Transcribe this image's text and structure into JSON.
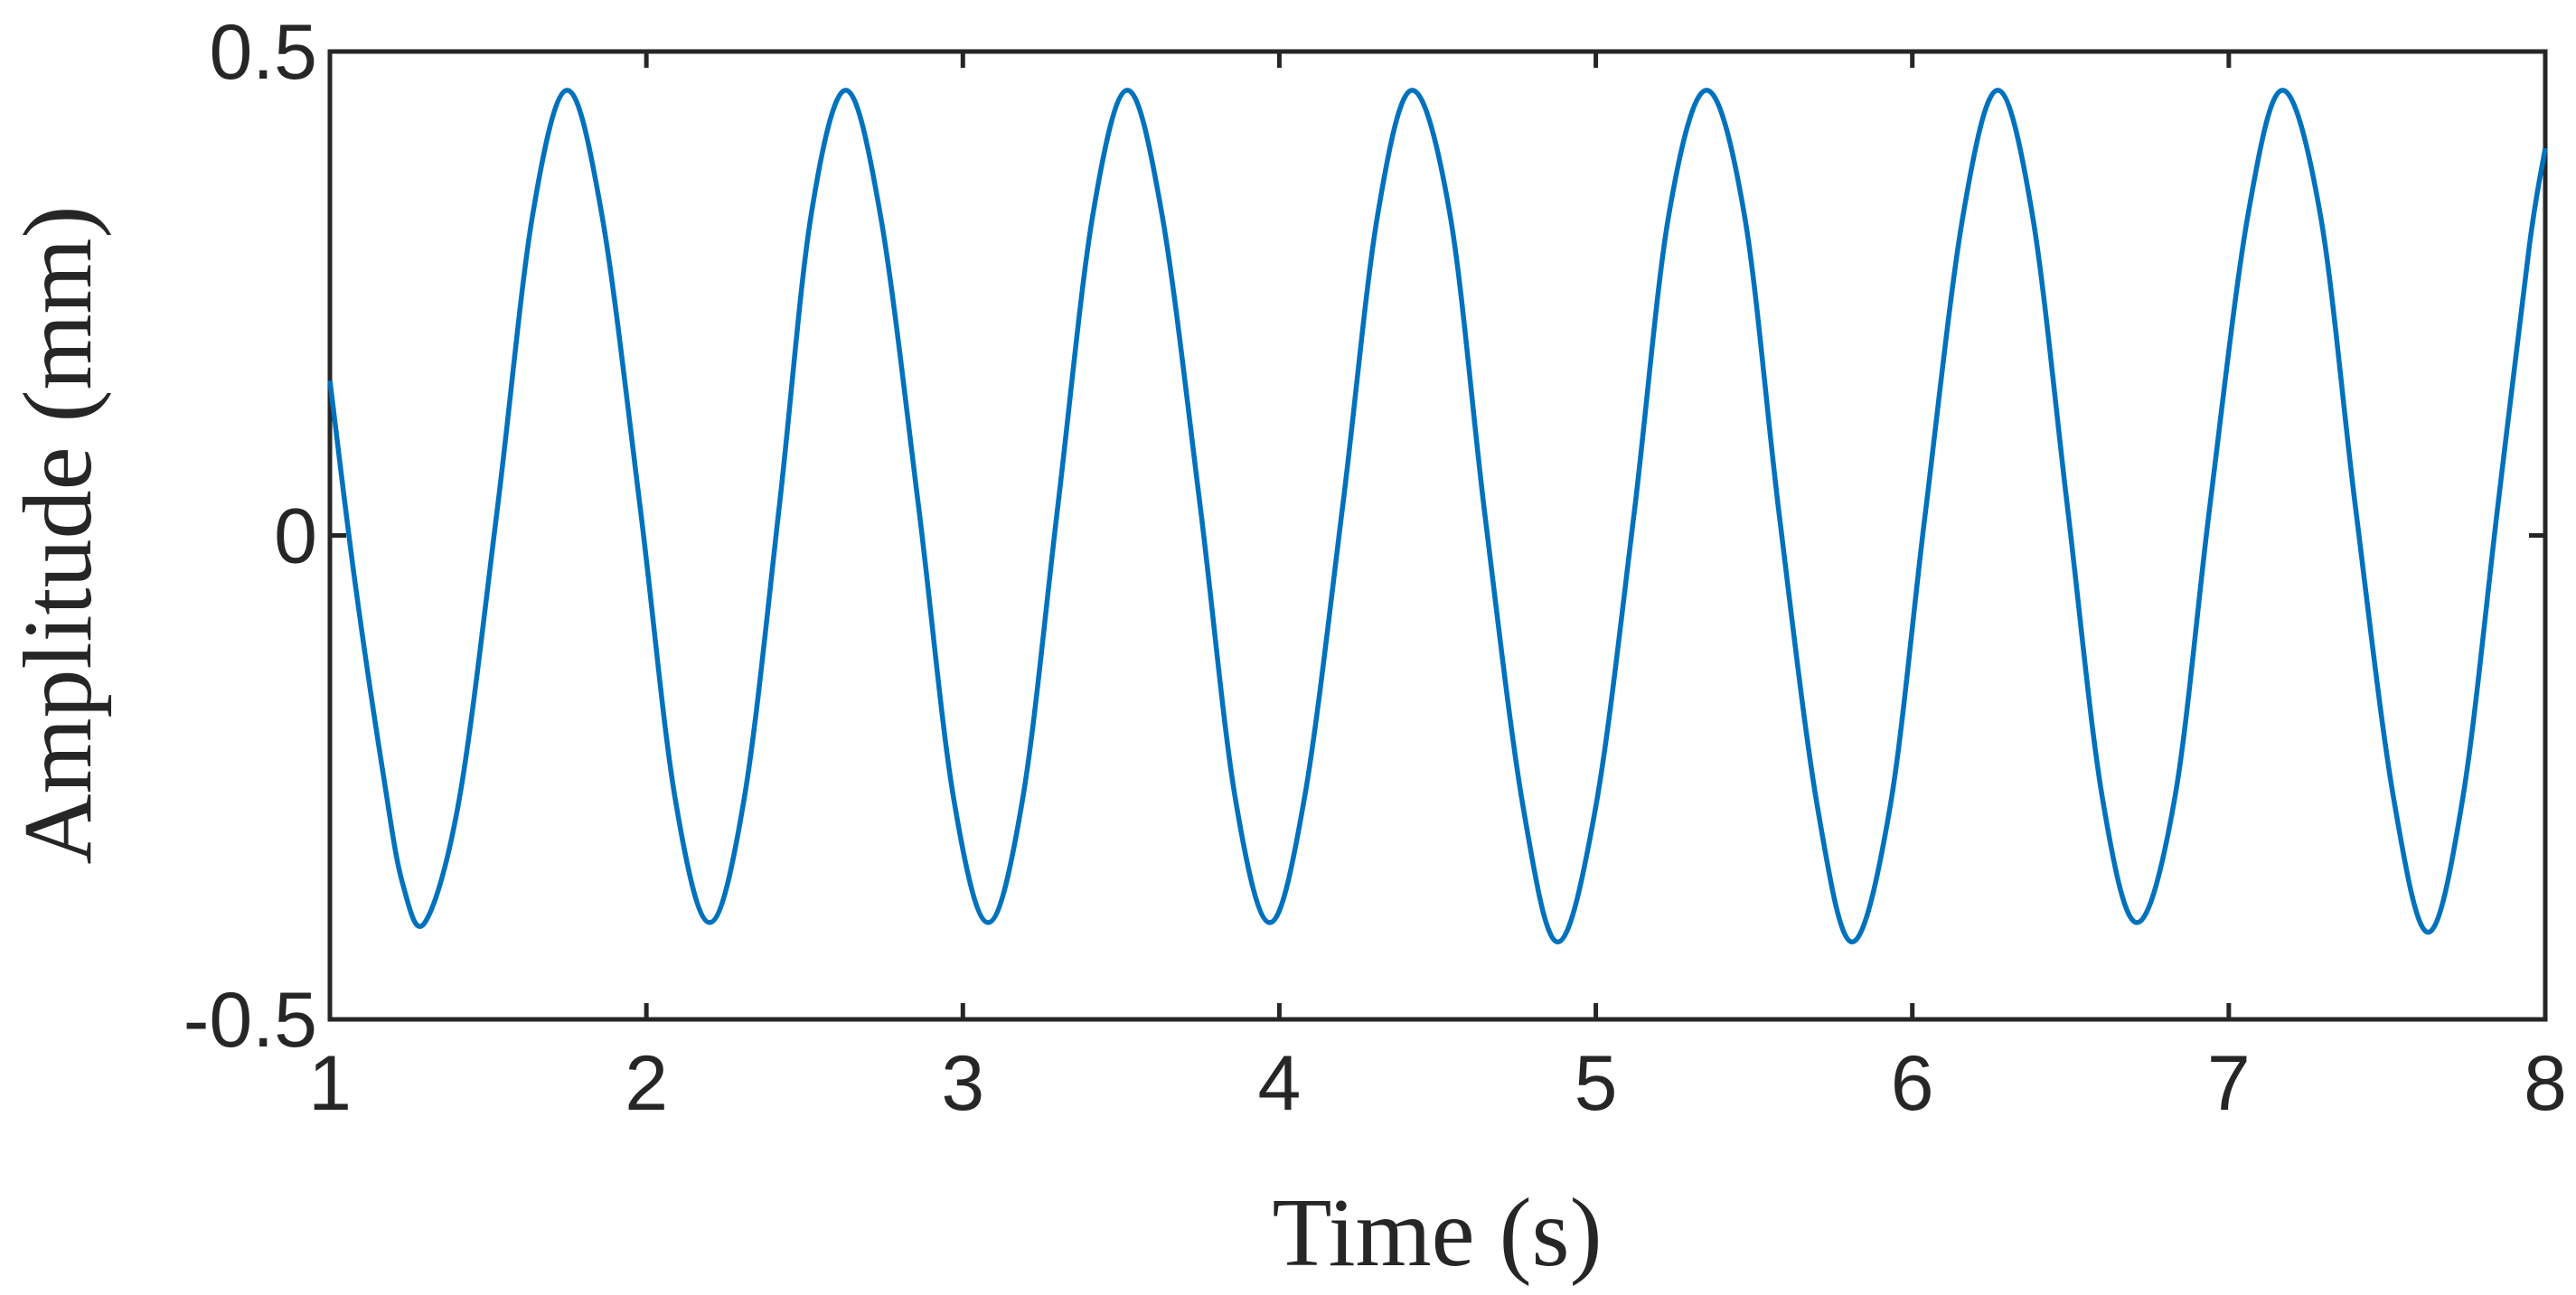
{
  "chart_data": {
    "type": "line",
    "x_label": "Time (s)",
    "y_label": "Amplitude (mm)",
    "xlim": [
      1,
      8
    ],
    "ylim": [
      -0.5,
      0.5
    ],
    "xticks": [
      1,
      2,
      3,
      4,
      5,
      6,
      7,
      8
    ],
    "yticks": [
      -0.5,
      0,
      0.5
    ],
    "grid": false,
    "series": [
      {
        "color": "#0072bd",
        "x": [
          1.0,
          1.08,
          1.17,
          1.23,
          1.3,
          1.41,
          1.53,
          1.64,
          1.75,
          1.86,
          1.98,
          2.09,
          2.2,
          2.31,
          2.42,
          2.52,
          2.63,
          2.74,
          2.86,
          2.97,
          3.08,
          3.19,
          3.3,
          3.41,
          3.52,
          3.63,
          3.75,
          3.86,
          3.97,
          4.08,
          4.2,
          4.31,
          4.42,
          4.54,
          4.65,
          4.77,
          4.88,
          5.0,
          5.12,
          5.23,
          5.35,
          5.47,
          5.58,
          5.7,
          5.81,
          5.93,
          6.04,
          6.16,
          6.27,
          6.38,
          6.49,
          6.6,
          6.71,
          6.83,
          6.94,
          7.06,
          7.17,
          7.29,
          7.4,
          7.52,
          7.63,
          7.74,
          7.85,
          7.95,
          8.0
        ],
        "values": [
          0.16,
          -0.05,
          -0.25,
          -0.36,
          -0.4,
          -0.27,
          0.03,
          0.33,
          0.46,
          0.33,
          0.03,
          -0.27,
          -0.4,
          -0.27,
          0.03,
          0.33,
          0.46,
          0.33,
          0.03,
          -0.27,
          -0.4,
          -0.27,
          0.03,
          0.33,
          0.46,
          0.33,
          0.03,
          -0.27,
          -0.4,
          -0.27,
          0.03,
          0.33,
          0.46,
          0.33,
          0.02,
          -0.28,
          -0.42,
          -0.28,
          0.02,
          0.33,
          0.46,
          0.33,
          0.02,
          -0.28,
          -0.42,
          -0.28,
          0.02,
          0.33,
          0.46,
          0.33,
          0.03,
          -0.27,
          -0.4,
          -0.27,
          0.03,
          0.33,
          0.46,
          0.33,
          0.03,
          -0.27,
          -0.41,
          -0.27,
          0.03,
          0.3,
          0.4
        ]
      }
    ]
  }
}
